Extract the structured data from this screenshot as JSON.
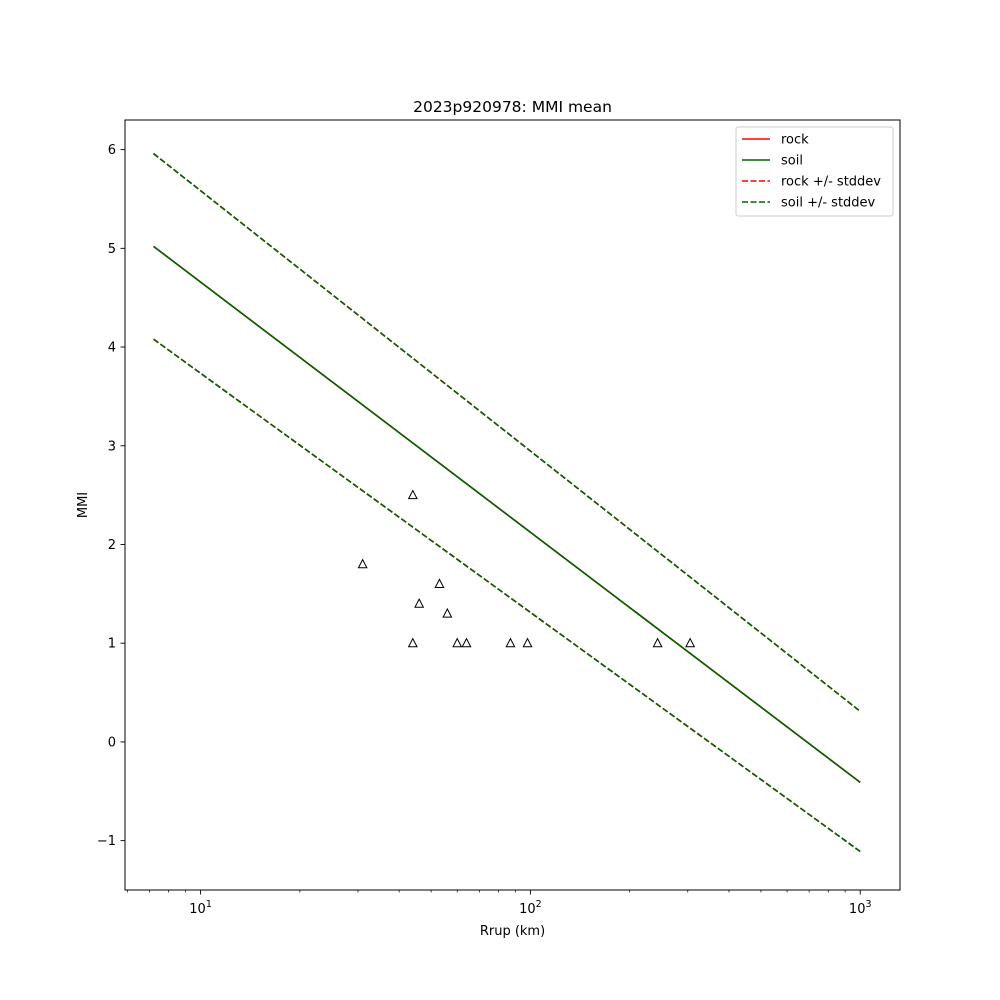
{
  "chart_data": {
    "type": "line",
    "title": "2023p920978: MMI mean",
    "xlabel": "Rrup (km)",
    "ylabel": "MMI",
    "xscale": "log",
    "xlim": [
      5.9,
      1320
    ],
    "ylim": [
      -1.5,
      6.3
    ],
    "x_major_ticks": [
      {
        "value": 10,
        "label": "10",
        "sup": "1"
      },
      {
        "value": 100,
        "label": "10",
        "sup": "2"
      },
      {
        "value": 1000,
        "label": "10",
        "sup": "3"
      }
    ],
    "y_ticks": [
      {
        "value": -1,
        "label": "−1"
      },
      {
        "value": 0,
        "label": "0"
      },
      {
        "value": 1,
        "label": "1"
      },
      {
        "value": 2,
        "label": "2"
      },
      {
        "value": 3,
        "label": "3"
      },
      {
        "value": 4,
        "label": "4"
      },
      {
        "value": 5,
        "label": "5"
      },
      {
        "value": 6,
        "label": "6"
      }
    ],
    "series": [
      {
        "name": "rock",
        "color": "#ff0000",
        "dash": false,
        "x": [
          7.2,
          1000
        ],
        "y": [
          5.02,
          -0.41
        ]
      },
      {
        "name": "soil",
        "color": "#006400",
        "dash": false,
        "x": [
          7.2,
          1000
        ],
        "y": [
          5.02,
          -0.41
        ]
      },
      {
        "name": "rock +/- stddev",
        "color": "#ff0000",
        "dash": true,
        "lines": [
          {
            "x": [
              7.2,
              1000
            ],
            "y": [
              5.96,
              0.31
            ]
          },
          {
            "x": [
              7.2,
              1000
            ],
            "y": [
              4.08,
              -1.11
            ]
          }
        ]
      },
      {
        "name": "soil +/- stddev",
        "color": "#006400",
        "dash": true,
        "lines": [
          {
            "x": [
              7.2,
              1000
            ],
            "y": [
              5.96,
              0.31
            ]
          },
          {
            "x": [
              7.2,
              1000
            ],
            "y": [
              4.08,
              -1.11
            ]
          }
        ]
      }
    ],
    "observations": {
      "marker": "triangle-open",
      "color": "#000000",
      "points": [
        {
          "x": 31,
          "y": 1.8
        },
        {
          "x": 44,
          "y": 2.5
        },
        {
          "x": 44,
          "y": 1.0
        },
        {
          "x": 46,
          "y": 1.4
        },
        {
          "x": 53,
          "y": 1.6
        },
        {
          "x": 56,
          "y": 1.3
        },
        {
          "x": 60,
          "y": 1.0
        },
        {
          "x": 64,
          "y": 1.0
        },
        {
          "x": 87,
          "y": 1.0
        },
        {
          "x": 98,
          "y": 1.0
        },
        {
          "x": 243,
          "y": 1.0
        },
        {
          "x": 305,
          "y": 1.0
        }
      ]
    },
    "legend": {
      "position": "top-right",
      "entries": [
        {
          "label": "rock",
          "color": "#ff0000",
          "dash": false
        },
        {
          "label": "soil",
          "color": "#006400",
          "dash": false
        },
        {
          "label": "rock +/- stddev",
          "color": "#ff0000",
          "dash": true
        },
        {
          "label": "soil +/- stddev",
          "color": "#006400",
          "dash": true
        }
      ]
    },
    "grid": false
  }
}
